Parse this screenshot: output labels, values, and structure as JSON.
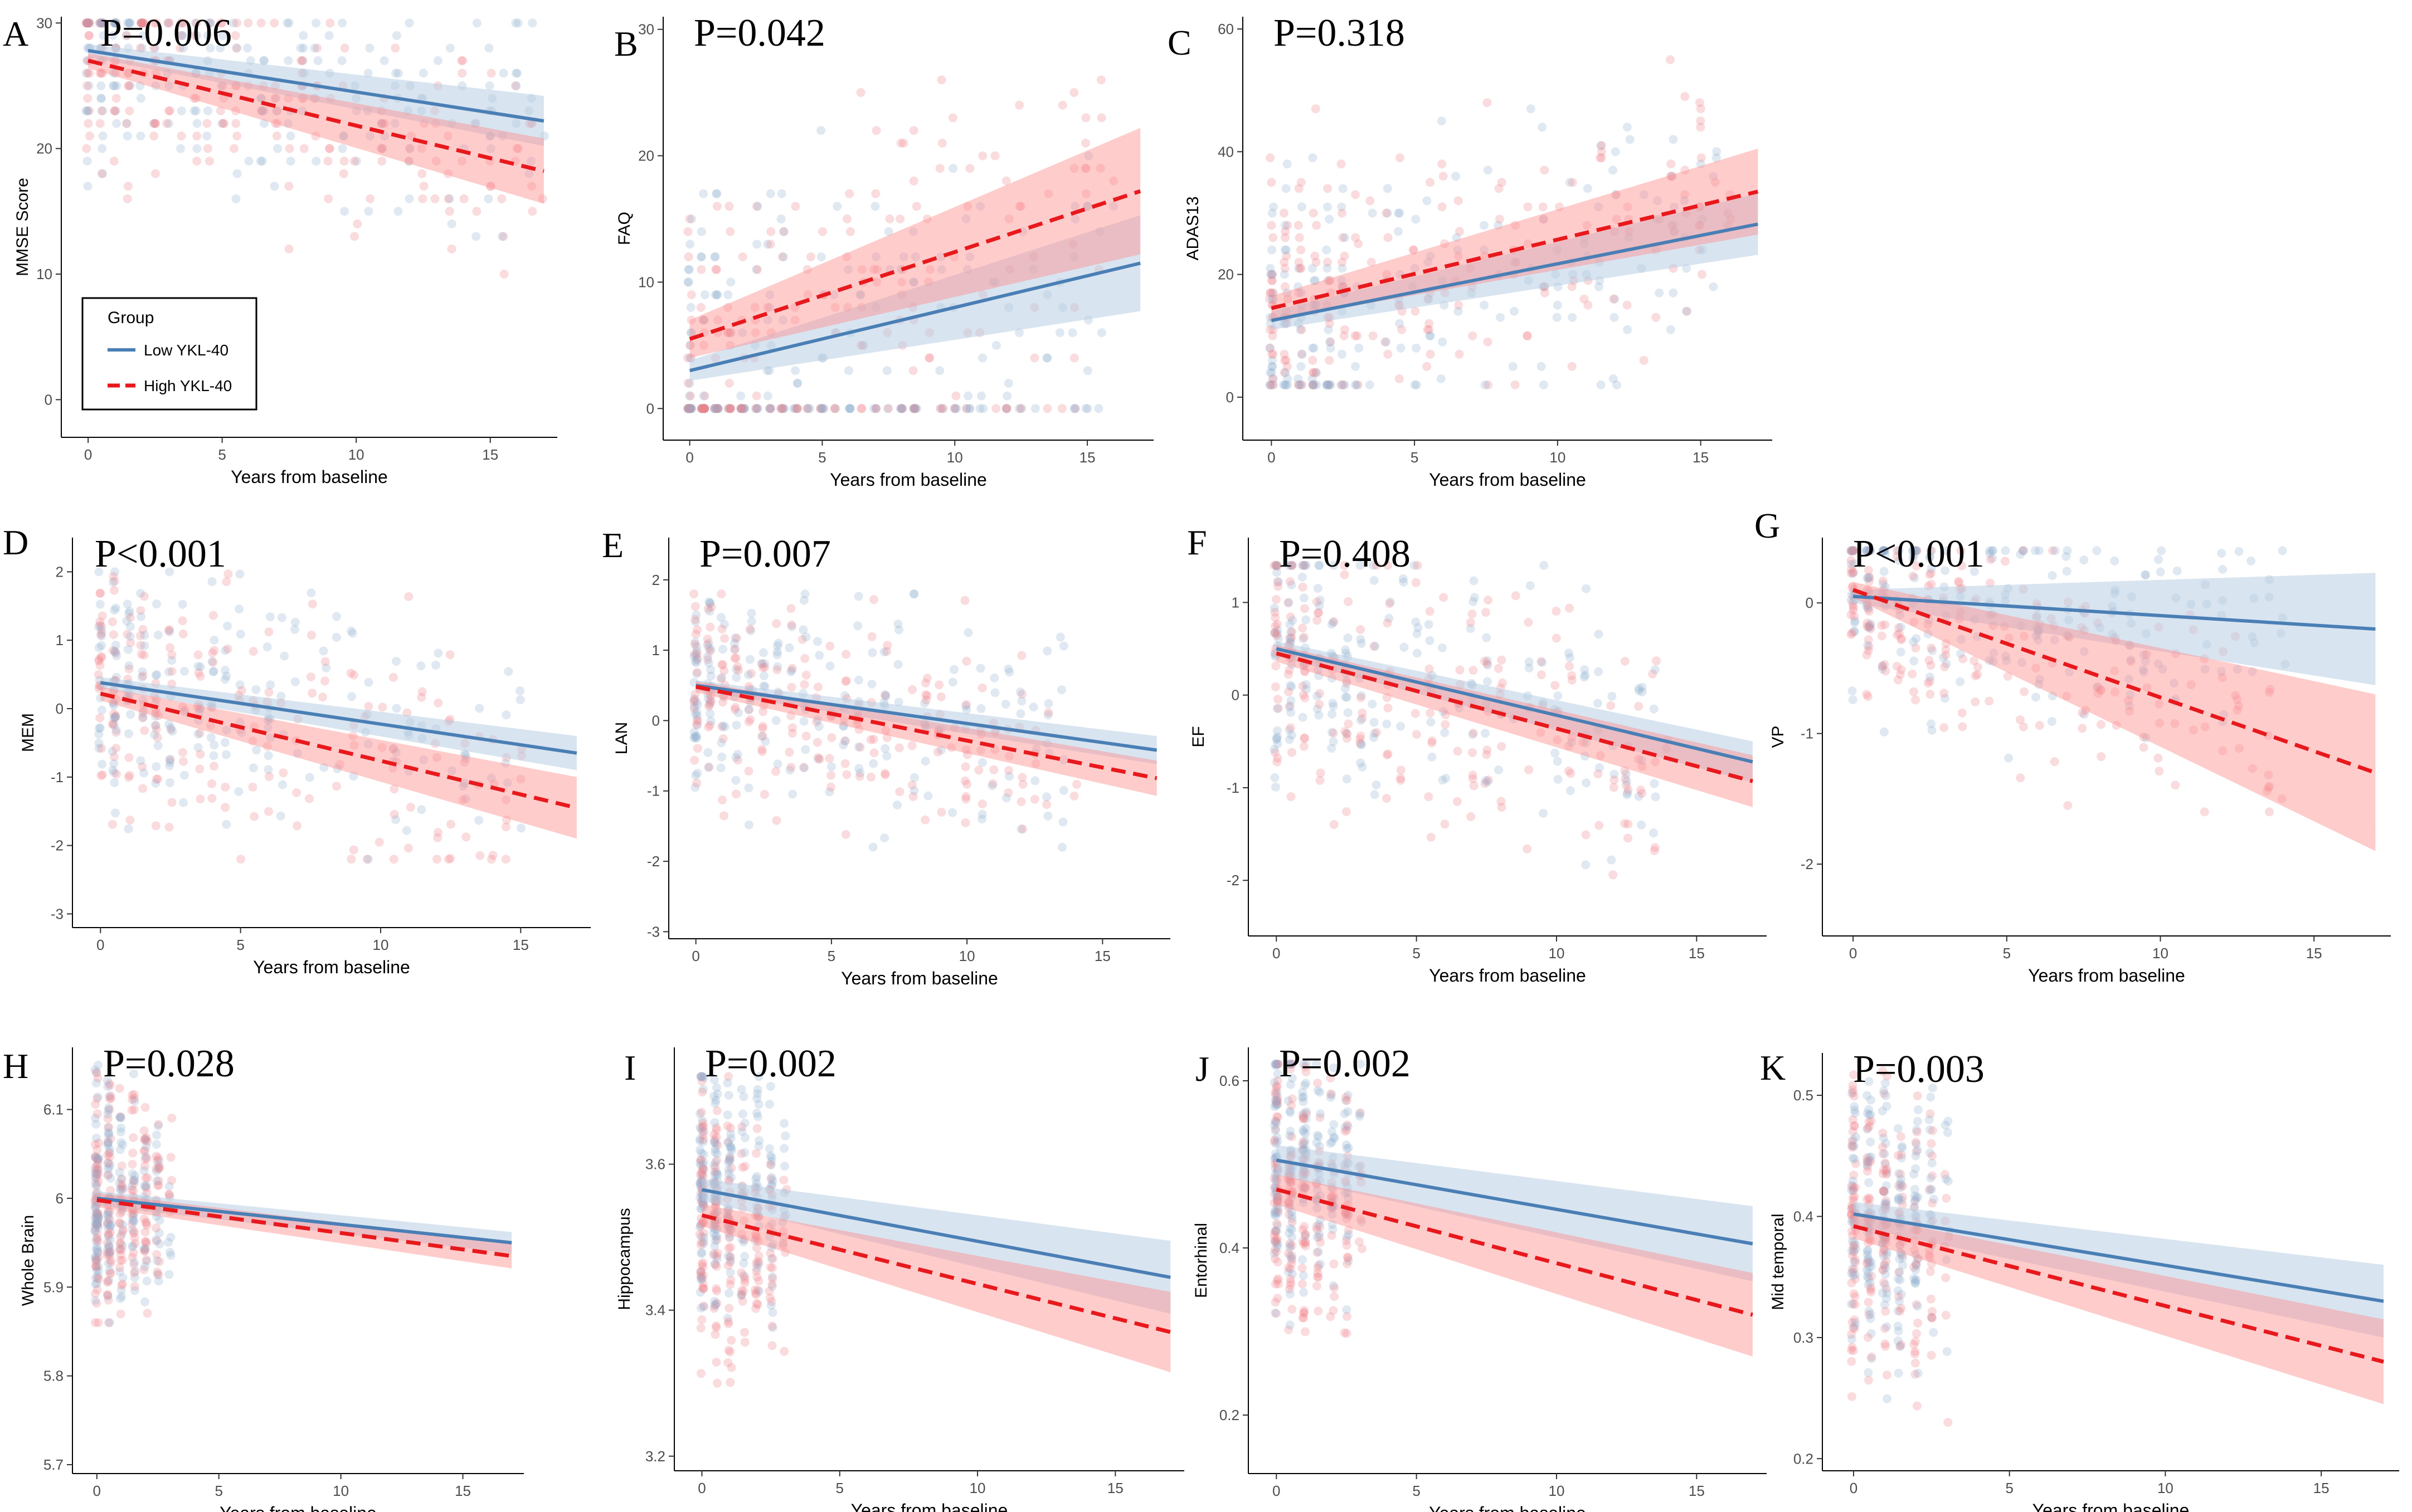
{
  "colors": {
    "low": "#4a7fb5",
    "high": "#e8191c",
    "low_band": "#b8cde2",
    "high_band": "#ff8f8f"
  },
  "legend": {
    "title": "Group",
    "items": [
      {
        "label": "Low YKL-40",
        "key": "low"
      },
      {
        "label": "High YKL-40",
        "key": "high"
      }
    ]
  },
  "chart_data": [
    {
      "panel": "A",
      "type": "scatter",
      "pvalue": "P=0.006",
      "ylabel": "MMSE Score",
      "xlabel": "Years from baseline",
      "xlim": [
        -1,
        17.5
      ],
      "ylim": [
        -3,
        30.5
      ],
      "xticks": [
        0,
        5,
        10,
        15
      ],
      "yticks": [
        0,
        10,
        20,
        30
      ],
      "scatter": {
        "xmax": 17,
        "ymin": 9,
        "ymax": 30,
        "discrete": true
      },
      "series": [
        {
          "name": "Low YKL-40",
          "start": 27.8,
          "end": 22.2,
          "band_start": 0.5,
          "band_end": 2.0
        },
        {
          "name": "High YKL-40",
          "start": 27.0,
          "end": 18.2,
          "band_start": 0.6,
          "band_end": 2.6
        }
      ]
    },
    {
      "panel": "B",
      "type": "scatter",
      "pvalue": "P=0.042",
      "ylabel": "FAQ",
      "xlabel": "Years from baseline",
      "xlim": [
        -1,
        17.5
      ],
      "ylim": [
        -2.5,
        31
      ],
      "xticks": [
        0,
        5,
        10,
        15
      ],
      "yticks": [
        0,
        10,
        20,
        30
      ],
      "scatter": {
        "xmax": 16,
        "ymin": 0,
        "ymax": 30,
        "discrete": true
      },
      "series": [
        {
          "name": "Low YKL-40",
          "start": 3.0,
          "end": 11.5,
          "band_start": 0.8,
          "band_end": 3.8
        },
        {
          "name": "High YKL-40",
          "start": 5.5,
          "end": 17.2,
          "band_start": 1.5,
          "band_end": 5.0
        }
      ]
    },
    {
      "panel": "C",
      "type": "scatter",
      "pvalue": "P=0.318",
      "ylabel": "ADAS13",
      "xlabel": "Years from baseline",
      "xlim": [
        -1,
        17.5
      ],
      "ylim": [
        -7,
        62
      ],
      "xticks": [
        0,
        5,
        10,
        15
      ],
      "yticks": [
        0,
        20,
        40,
        60
      ],
      "scatter": {
        "xmax": 16,
        "ymin": 2,
        "ymax": 55,
        "discrete": true
      },
      "series": [
        {
          "name": "Low YKL-40",
          "start": 12.5,
          "end": 28.2,
          "band_start": 1.5,
          "band_end": 5.0
        },
        {
          "name": "High YKL-40",
          "start": 14.5,
          "end": 33.5,
          "band_start": 2.0,
          "band_end": 7.0
        }
      ]
    },
    {
      "panel": "D",
      "type": "scatter",
      "pvalue": "P<0.001",
      "ylabel": "MEM",
      "xlabel": "Years from baseline",
      "xlim": [
        -1,
        17.5
      ],
      "ylim": [
        -3.2,
        2.5
      ],
      "xticks": [
        0,
        5,
        10,
        15
      ],
      "yticks": [
        -3,
        -2,
        -1,
        0,
        1,
        2
      ],
      "scatter": {
        "xmax": 15,
        "ymin": -2.2,
        "ymax": 2.0
      },
      "series": [
        {
          "name": "Low YKL-40",
          "start": 0.38,
          "end": -0.65,
          "band_start": 0.08,
          "band_end": 0.25
        },
        {
          "name": "High YKL-40",
          "start": 0.22,
          "end": -1.45,
          "band_start": 0.1,
          "band_end": 0.45
        }
      ]
    },
    {
      "panel": "E",
      "type": "scatter",
      "pvalue": "P=0.007",
      "ylabel": "LAN",
      "xlabel": "Years from baseline",
      "xlim": [
        -1,
        17.5
      ],
      "ylim": [
        -3.1,
        2.6
      ],
      "xticks": [
        0,
        5,
        10,
        15
      ],
      "yticks": [
        -3,
        -2,
        -1,
        0,
        1,
        2
      ],
      "scatter": {
        "xmax": 14,
        "ymin": -1.8,
        "ymax": 1.8
      },
      "series": [
        {
          "name": "Low YKL-40",
          "start": 0.5,
          "end": -0.42,
          "band_start": 0.07,
          "band_end": 0.2
        },
        {
          "name": "High YKL-40",
          "start": 0.48,
          "end": -0.82,
          "band_start": 0.08,
          "band_end": 0.25
        }
      ]
    },
    {
      "panel": "F",
      "type": "scatter",
      "pvalue": "P=0.408",
      "ylabel": "EF",
      "xlabel": "Years from baseline",
      "xlim": [
        -1,
        17.5
      ],
      "ylim": [
        -2.6,
        1.7
      ],
      "xticks": [
        0,
        5,
        10,
        15
      ],
      "yticks": [
        -2,
        -1,
        0,
        1
      ],
      "scatter": {
        "xmax": 14,
        "ymin": -2.1,
        "ymax": 1.4
      },
      "series": [
        {
          "name": "Low YKL-40",
          "start": 0.5,
          "end": -0.72,
          "band_start": 0.08,
          "band_end": 0.22
        },
        {
          "name": "High YKL-40",
          "start": 0.45,
          "end": -0.93,
          "band_start": 0.09,
          "band_end": 0.28
        }
      ]
    },
    {
      "panel": "G",
      "type": "scatter",
      "pvalue": "P<0.001",
      "ylabel": "VP",
      "xlabel": "Years from baseline",
      "xlim": [
        -1,
        17.5
      ],
      "ylim": [
        -2.55,
        0.5
      ],
      "xticks": [
        0,
        5,
        10,
        15
      ],
      "yticks": [
        -2,
        -1,
        0
      ],
      "scatter": {
        "xmax": 14,
        "ymin": -1.6,
        "ymax": 0.4
      },
      "series": [
        {
          "name": "Low YKL-40",
          "start": 0.05,
          "end": -0.2,
          "band_start": 0.05,
          "band_end": 0.43
        },
        {
          "name": "High YKL-40",
          "start": 0.1,
          "end": -1.3,
          "band_start": 0.06,
          "band_end": 0.6
        }
      ]
    },
    {
      "panel": "H",
      "type": "scatter",
      "pvalue": "P=0.028",
      "ylabel": "Whole Brain",
      "xlabel": "Years from baseline",
      "xlim": [
        -1,
        17.5
      ],
      "ylim": [
        5.69,
        6.17
      ],
      "xticks": [
        0,
        5,
        10,
        15
      ],
      "yticks": [
        5.7,
        5.8,
        5.9,
        6.0,
        6.1
      ],
      "scatter": {
        "xmax": 3,
        "ymin": 5.86,
        "ymax": 6.15
      },
      "series": [
        {
          "name": "Low YKL-40",
          "start": 6.0,
          "end": 5.95,
          "band_start": 0.008,
          "band_end": 0.012
        },
        {
          "name": "High YKL-40",
          "start": 5.998,
          "end": 5.935,
          "band_start": 0.008,
          "band_end": 0.014
        }
      ]
    },
    {
      "panel": "I",
      "type": "scatter",
      "pvalue": "P=0.002",
      "ylabel": "Hippocampus",
      "xlabel": "Years from baseline",
      "xlim": [
        -1,
        17.5
      ],
      "ylim": [
        3.18,
        3.76
      ],
      "xticks": [
        0,
        5,
        10,
        15
      ],
      "yticks": [
        3.2,
        3.4,
        3.6
      ],
      "scatter": {
        "xmax": 3,
        "ymin": 3.3,
        "ymax": 3.72
      },
      "series": [
        {
          "name": "Low YKL-40",
          "start": 3.565,
          "end": 3.445,
          "band_start": 0.015,
          "band_end": 0.05
        },
        {
          "name": "High YKL-40",
          "start": 3.53,
          "end": 3.37,
          "band_start": 0.015,
          "band_end": 0.055
        }
      ]
    },
    {
      "panel": "J",
      "type": "scatter",
      "pvalue": "P=0.002",
      "ylabel": "Entorhinal",
      "xlabel": "Years from baseline",
      "xlim": [
        -1,
        17.5
      ],
      "ylim": [
        0.13,
        0.64
      ],
      "xticks": [
        0,
        5,
        10,
        15
      ],
      "yticks": [
        0.2,
        0.4,
        0.6
      ],
      "scatter": {
        "xmax": 3,
        "ymin": 0.24,
        "ymax": 0.62
      },
      "series": [
        {
          "name": "Low YKL-40",
          "start": 0.505,
          "end": 0.405,
          "band_start": 0.018,
          "band_end": 0.045
        },
        {
          "name": "High YKL-40",
          "start": 0.47,
          "end": 0.32,
          "band_start": 0.018,
          "band_end": 0.05
        }
      ]
    },
    {
      "panel": "K",
      "type": "scatter",
      "pvalue": "P=0.003",
      "ylabel": "Mid temporal",
      "xlabel": "Years from baseline",
      "xlim": [
        -1,
        17.5
      ],
      "ylim": [
        0.19,
        0.535
      ],
      "xticks": [
        0,
        5,
        10,
        15
      ],
      "yticks": [
        0.2,
        0.3,
        0.4,
        0.5
      ],
      "scatter": {
        "xmax": 3,
        "ymin": 0.23,
        "ymax": 0.52
      },
      "series": [
        {
          "name": "Low YKL-40",
          "start": 0.402,
          "end": 0.33,
          "band_start": 0.01,
          "band_end": 0.03
        },
        {
          "name": "High YKL-40",
          "start": 0.392,
          "end": 0.28,
          "band_start": 0.01,
          "band_end": 0.035
        }
      ]
    }
  ]
}
